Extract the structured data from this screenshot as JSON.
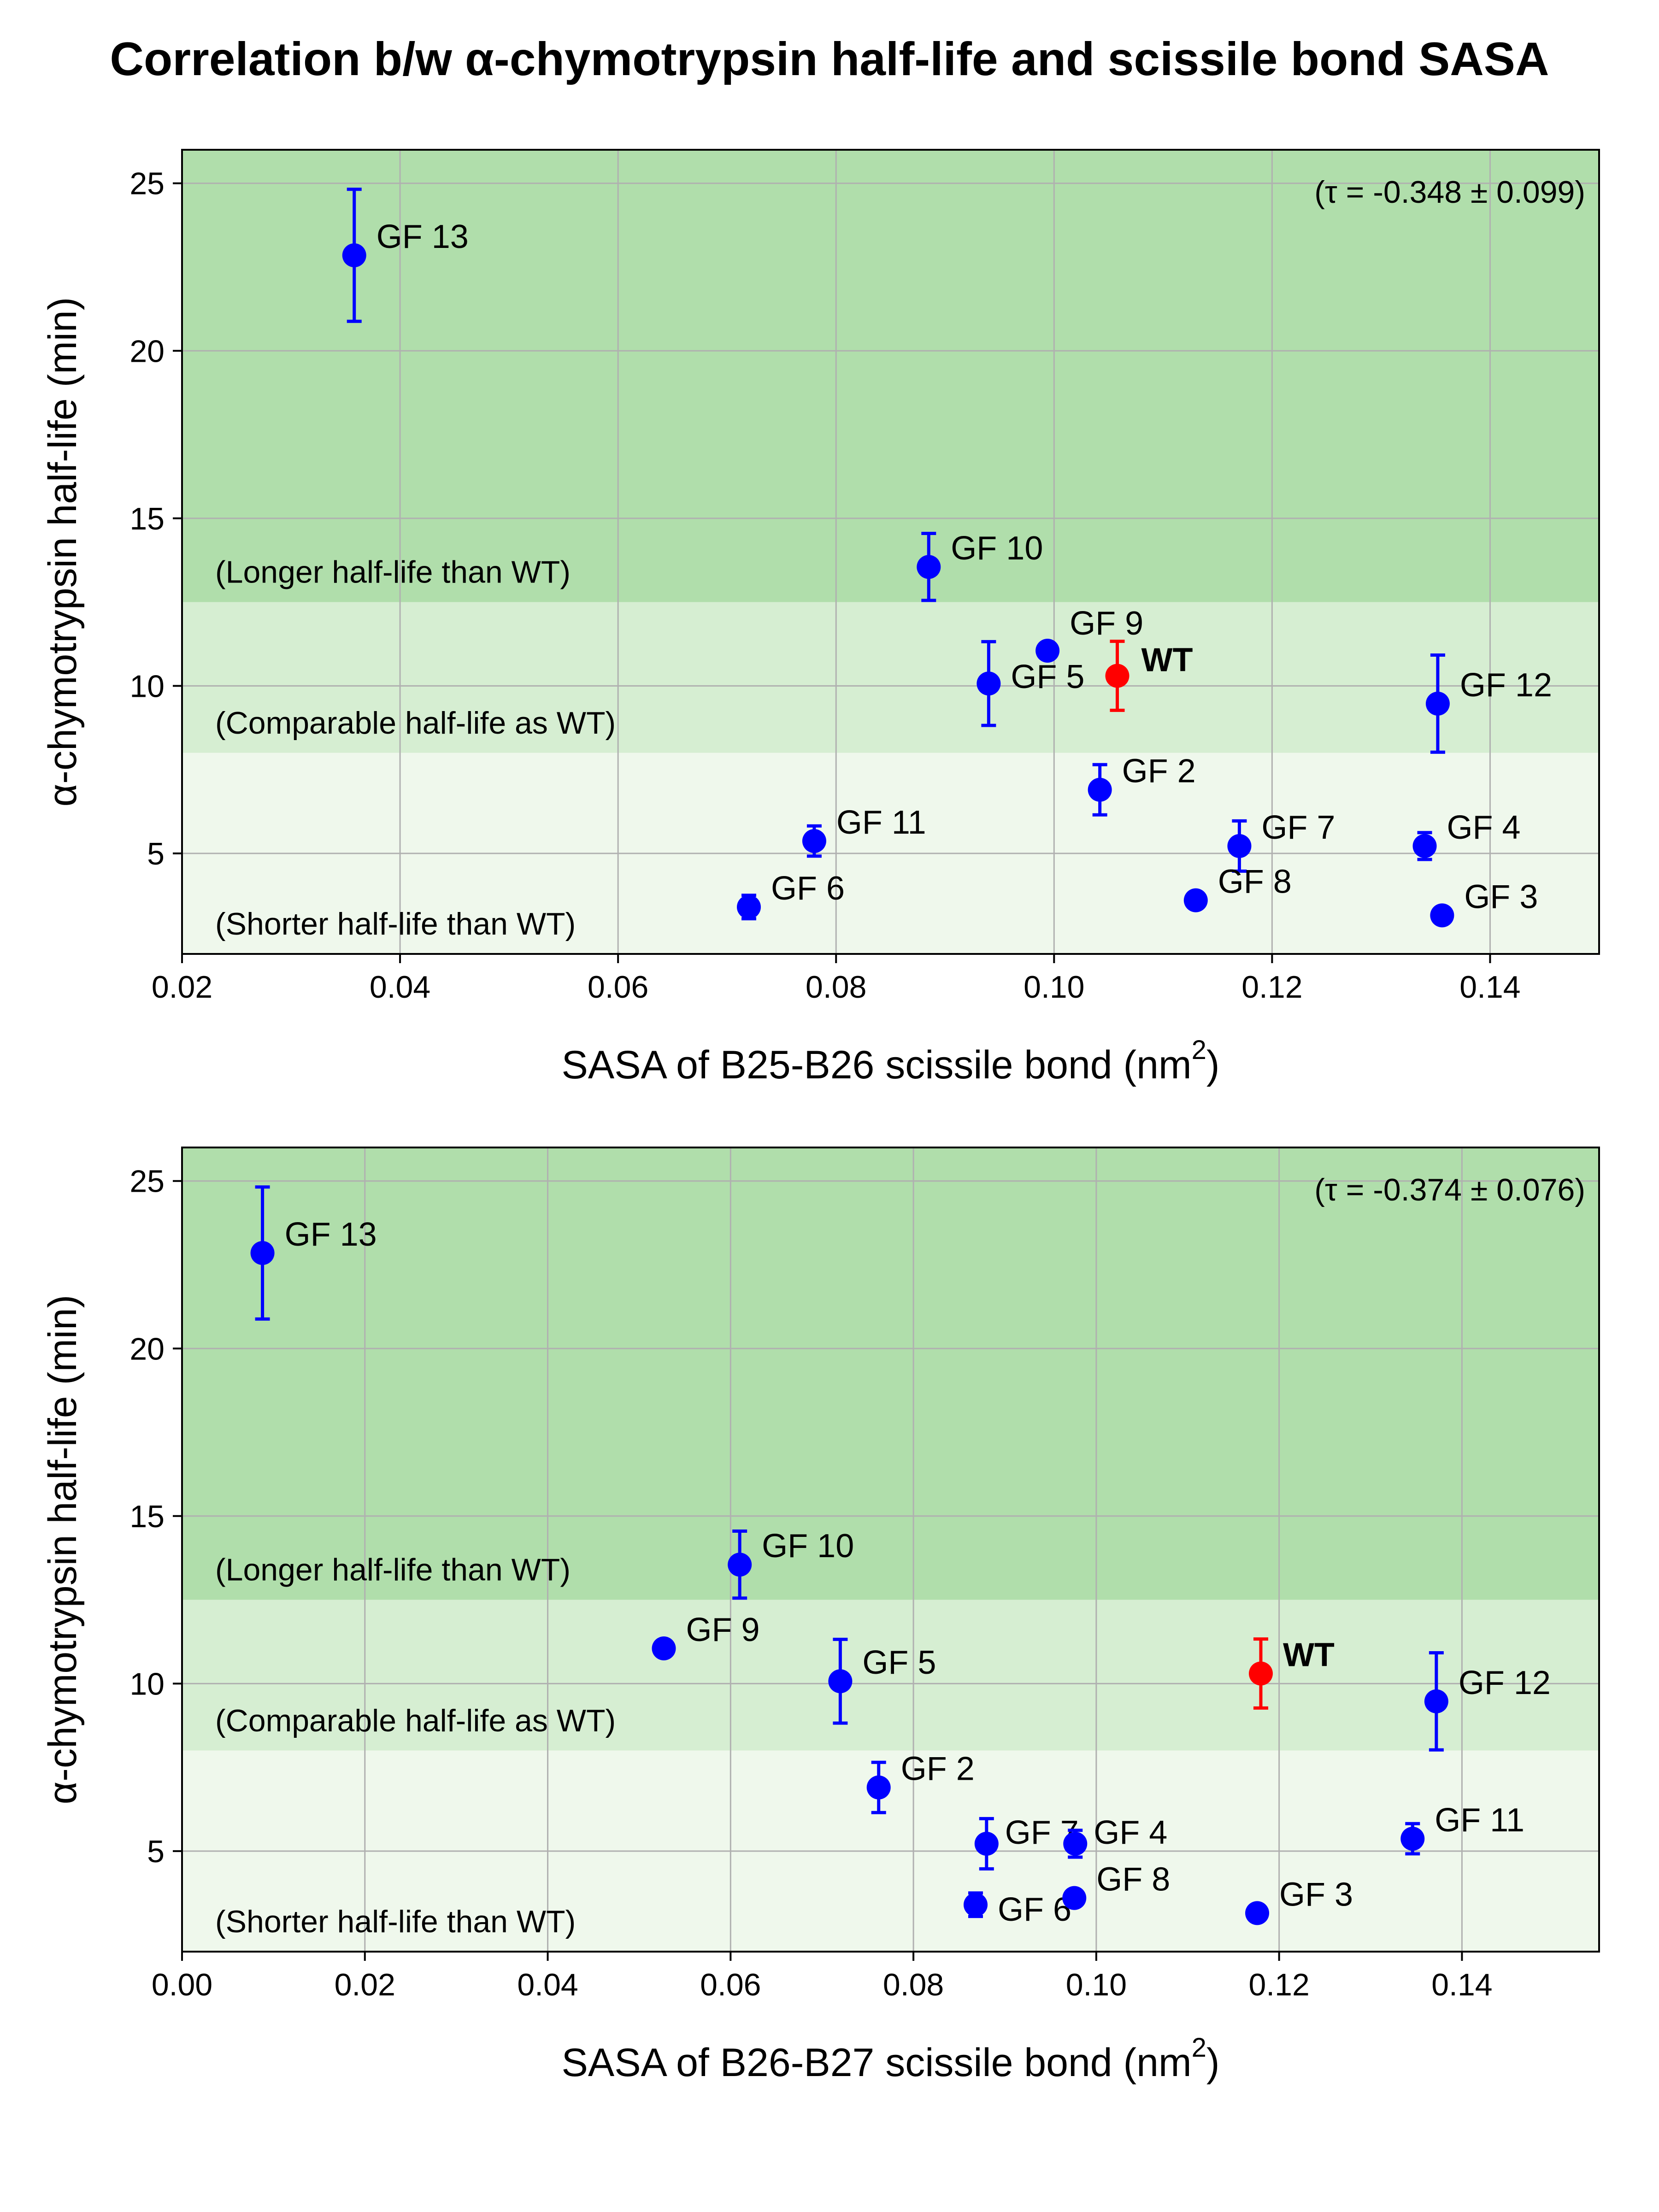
{
  "figure": {
    "title": "Correlation b/w α-chymotrypsin half-life and scissile bond SASA",
    "colors": {
      "region_long": "#b0deab",
      "region_comparable": "#d6eed2",
      "region_short": "#eff8ec",
      "variant": "#0000ff",
      "wt": "#ff0000",
      "grid": "#b0b0b0"
    }
  },
  "chart_data": [
    {
      "type": "scatter",
      "xlabel": "SASA of B25-B26 scissile bond (nm",
      "xlabel_sup": "2",
      "xlabel_tail": ")",
      "ylabel": "α-chymotrypsin half-life (min)",
      "xlim": [
        0.02,
        0.15
      ],
      "ylim": [
        2,
        26
      ],
      "xticks": [
        0.02,
        0.04,
        0.06,
        0.08,
        0.1,
        0.12,
        0.14
      ],
      "xtick_labels": [
        "0.02",
        "0.04",
        "0.06",
        "0.08",
        "0.10",
        "0.12",
        "0.14"
      ],
      "yticks": [
        5,
        10,
        15,
        20,
        25
      ],
      "ytick_labels": [
        "5",
        "10",
        "15",
        "20",
        "25"
      ],
      "grid": true,
      "annotation": "(τ = -0.348 ± 0.099)",
      "regions": [
        {
          "label": "(Longer half-life than WT)",
          "y_from": 12.5,
          "y_to": 26,
          "color": "#b0deab"
        },
        {
          "label": "(Comparable half-life as WT)",
          "y_from": 8,
          "y_to": 12.5,
          "color": "#d6eed2"
        },
        {
          "label": "(Shorter half-life than WT)",
          "y_from": 2,
          "y_to": 8,
          "color": "#eff8ec"
        }
      ],
      "points": [
        {
          "label": "GF 13",
          "x": 0.0358,
          "y": 22.85,
          "err": 1.97,
          "wt": false
        },
        {
          "label": "GF 10",
          "x": 0.0885,
          "y": 13.55,
          "err": 1.0,
          "wt": false
        },
        {
          "label": "GF 9",
          "x": 0.0994,
          "y": 11.05,
          "err": 0.1,
          "wt": false
        },
        {
          "label": "GF 5",
          "x": 0.094,
          "y": 10.07,
          "err": 1.25,
          "wt": false
        },
        {
          "label": "WT",
          "x": 0.1058,
          "y": 10.3,
          "err": 1.03,
          "wt": true
        },
        {
          "label": "GF 12",
          "x": 0.1352,
          "y": 9.47,
          "err": 1.45,
          "wt": false
        },
        {
          "label": "GF 2",
          "x": 0.1042,
          "y": 6.9,
          "err": 0.75,
          "wt": false
        },
        {
          "label": "GF 11",
          "x": 0.078,
          "y": 5.37,
          "err": 0.45,
          "wt": false
        },
        {
          "label": "GF 7",
          "x": 0.117,
          "y": 5.22,
          "err": 0.75,
          "wt": false
        },
        {
          "label": "GF 4",
          "x": 0.134,
          "y": 5.22,
          "err": 0.4,
          "wt": false
        },
        {
          "label": "GF 8",
          "x": 0.113,
          "y": 3.6,
          "err": 0.1,
          "wt": false
        },
        {
          "label": "GF 6",
          "x": 0.072,
          "y": 3.4,
          "err": 0.35,
          "wt": false
        },
        {
          "label": "GF 3",
          "x": 0.1356,
          "y": 3.15,
          "err": 0.1,
          "wt": false
        }
      ]
    },
    {
      "type": "scatter",
      "xlabel": "SASA of B26-B27 scissile bond (nm",
      "xlabel_sup": "2",
      "xlabel_tail": ")",
      "ylabel": "α-chymotrypsin half-life (min)",
      "xlim": [
        0.0,
        0.155
      ],
      "ylim": [
        2,
        26
      ],
      "xticks": [
        0.0,
        0.02,
        0.04,
        0.06,
        0.08,
        0.1,
        0.12,
        0.14
      ],
      "xtick_labels": [
        "0.00",
        "0.02",
        "0.04",
        "0.06",
        "0.08",
        "0.10",
        "0.12",
        "0.14"
      ],
      "yticks": [
        5,
        10,
        15,
        20,
        25
      ],
      "ytick_labels": [
        "5",
        "10",
        "15",
        "20",
        "25"
      ],
      "grid": true,
      "annotation": "(τ = -0.374 ± 0.076)",
      "regions": [
        {
          "label": "(Longer half-life than WT)",
          "y_from": 12.5,
          "y_to": 26,
          "color": "#b0deab"
        },
        {
          "label": "(Comparable half-life as WT)",
          "y_from": 8,
          "y_to": 12.5,
          "color": "#d6eed2"
        },
        {
          "label": "(Shorter half-life than WT)",
          "y_from": 2,
          "y_to": 8,
          "color": "#eff8ec"
        }
      ],
      "points": [
        {
          "label": "GF 13",
          "x": 0.0088,
          "y": 22.85,
          "err": 1.97,
          "wt": false
        },
        {
          "label": "GF 10",
          "x": 0.061,
          "y": 13.55,
          "err": 1.0,
          "wt": false
        },
        {
          "label": "GF 9",
          "x": 0.0527,
          "y": 11.05,
          "err": 0.1,
          "wt": false
        },
        {
          "label": "GF 5",
          "x": 0.072,
          "y": 10.07,
          "err": 1.25,
          "wt": false
        },
        {
          "label": "WT",
          "x": 0.118,
          "y": 10.3,
          "err": 1.03,
          "wt": true
        },
        {
          "label": "GF 12",
          "x": 0.1372,
          "y": 9.47,
          "err": 1.45,
          "wt": false
        },
        {
          "label": "GF 2",
          "x": 0.0762,
          "y": 6.9,
          "err": 0.75,
          "wt": false
        },
        {
          "label": "GF 7",
          "x": 0.088,
          "y": 5.22,
          "err": 0.75,
          "wt": false
        },
        {
          "label": "GF 4",
          "x": 0.0977,
          "y": 5.22,
          "err": 0.4,
          "wt": false
        },
        {
          "label": "GF 11",
          "x": 0.1346,
          "y": 5.37,
          "err": 0.45,
          "wt": false
        },
        {
          "label": "GF 6",
          "x": 0.0868,
          "y": 3.4,
          "err": 0.35,
          "wt": false
        },
        {
          "label": "GF 8",
          "x": 0.0976,
          "y": 3.6,
          "err": 0.1,
          "wt": false
        },
        {
          "label": "GF 3",
          "x": 0.1176,
          "y": 3.15,
          "err": 0.1,
          "wt": false
        }
      ]
    }
  ]
}
